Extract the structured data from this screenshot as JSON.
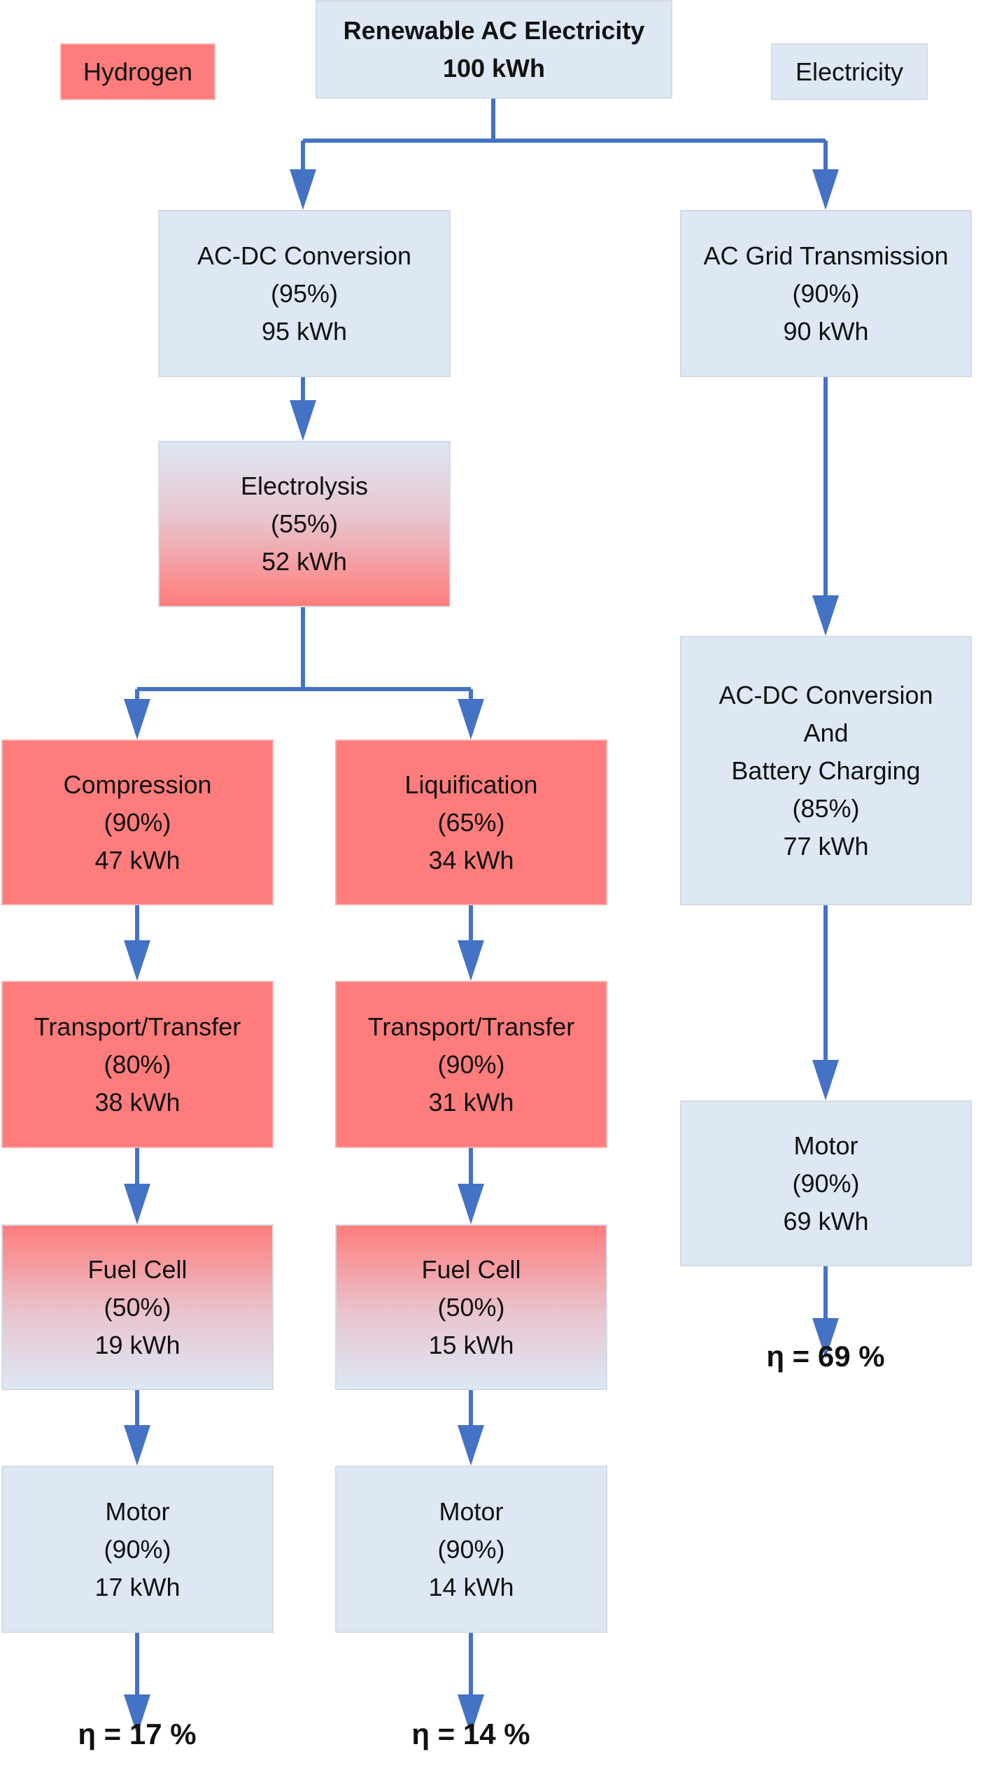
{
  "legend": {
    "hydrogen": "Hydrogen",
    "electricity": "Electricity",
    "hydrogen_color": "#fe7c7c",
    "electricity_color": "#dde8f4"
  },
  "source": {
    "title": "Renewable AC Electricity",
    "energy": "100 kWh"
  },
  "hydrogen_path": {
    "acdc": {
      "name": "AC-DC Conversion",
      "eff": "(95%)",
      "energy": "95 kWh"
    },
    "electrolysis": {
      "name": "Electrolysis",
      "eff": "(55%)",
      "energy": "52 kWh"
    },
    "compressed": {
      "compression": {
        "name": "Compression",
        "eff": "(90%)",
        "energy": "47 kWh"
      },
      "transport": {
        "name": "Transport/Transfer",
        "eff": "(80%)",
        "energy": "38 kWh"
      },
      "fuel_cell": {
        "name": "Fuel Cell",
        "eff": "(50%)",
        "energy": "19 kWh"
      },
      "motor": {
        "name": "Motor",
        "eff": "(90%)",
        "energy": "17 kWh"
      },
      "efficiency": "η  = 17 %"
    },
    "liquid": {
      "liquification": {
        "name": "Liquification",
        "eff": "(65%)",
        "energy": "34 kWh"
      },
      "transport": {
        "name": "Transport/Transfer",
        "eff": "(90%)",
        "energy": "31 kWh"
      },
      "fuel_cell": {
        "name": "Fuel Cell",
        "eff": "(50%)",
        "energy": "15 kWh"
      },
      "motor": {
        "name": "Motor",
        "eff": "(90%)",
        "energy": "14 kWh"
      },
      "efficiency": "η  = 14 %"
    }
  },
  "electric_path": {
    "grid": {
      "name": "AC Grid Transmission",
      "eff": "(90%)",
      "energy": "90 kWh"
    },
    "charging": {
      "name1": "AC-DC Conversion",
      "name2": "And",
      "name3": "Battery Charging",
      "eff": "(85%)",
      "energy": "77 kWh"
    },
    "motor": {
      "name": "Motor",
      "eff": "(90%)",
      "energy": "69 kWh"
    },
    "efficiency": "η  = 69 %"
  },
  "arrow_color": "#4472c4"
}
